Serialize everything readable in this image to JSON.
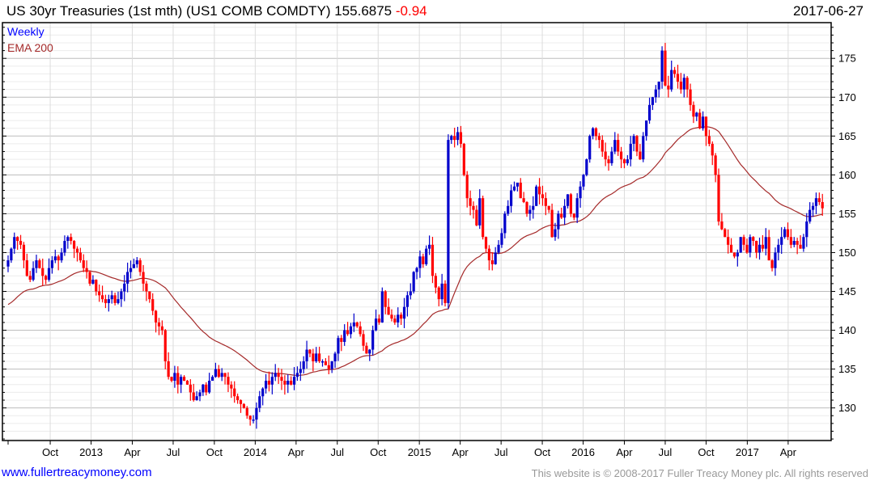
{
  "header": {
    "title": "US 30yr Treasuries (1st mth) (US1 COMB COMDTY) 155.6875",
    "change": "-0.94",
    "date": "2017-06-27"
  },
  "legend": {
    "weekly": "Weekly",
    "ema": "EMA 200"
  },
  "footer": {
    "link": "www.fullertreacymoney.com",
    "copyright": "This website is © 2008-2017 Fuller Treacy Money plc. All rights reserved"
  },
  "colors": {
    "up": "#0000cc",
    "down": "#ff0000",
    "ema": "#a52a2a",
    "grid_major": "#bdbdbd",
    "grid_minor": "#ececec"
  },
  "chart_data": {
    "type": "candlestick",
    "title": "US 30yr Treasuries (1st mth) (US1 COMB COMDTY)",
    "frequency": "Weekly",
    "ylim": [
      125.8,
      179.6
    ],
    "yticks": [
      130,
      135,
      140,
      145,
      150,
      155,
      160,
      165,
      170,
      175
    ],
    "xticks": [
      {
        "label": "Oct",
        "week": 13.4
      },
      {
        "label": "2013",
        "week": 26.4
      },
      {
        "label": "Apr",
        "week": 39.5
      },
      {
        "label": "Jul",
        "week": 52.5
      },
      {
        "label": "Oct",
        "week": 65.6
      },
      {
        "label": "2014",
        "week": 78.6
      },
      {
        "label": "Apr",
        "week": 91.6
      },
      {
        "label": "Jul",
        "week": 104.7
      },
      {
        "label": "Oct",
        "week": 117.7
      },
      {
        "label": "2015",
        "week": 130.8
      },
      {
        "label": "Apr",
        "week": 143.8
      },
      {
        "label": "Jul",
        "week": 156.8
      },
      {
        "label": "Oct",
        "week": 169.9
      },
      {
        "label": "2016",
        "week": 182.9
      },
      {
        "label": "Apr",
        "week": 196.0
      },
      {
        "label": "Jul",
        "week": 209.0
      },
      {
        "label": "Oct",
        "week": 222.0
      },
      {
        "label": "2017",
        "week": 235.1
      },
      {
        "label": "Apr",
        "week": 248.1
      }
    ],
    "first_open": 148.2,
    "ema_label": "EMA 200",
    "ema_seed": 143.3,
    "closes": [
      149,
      150.5,
      152,
      151.5,
      151,
      149,
      147,
      146.5,
      148,
      149,
      148,
      147,
      146.5,
      148,
      149,
      149.5,
      149,
      150,
      151.5,
      152,
      151.5,
      150.5,
      150,
      149,
      148,
      147.5,
      146,
      146.5,
      145,
      144.5,
      144,
      143.5,
      144,
      144.5,
      143.5,
      144,
      145,
      146,
      147.5,
      148,
      148.5,
      149,
      147.5,
      146,
      145,
      144,
      142.5,
      141,
      140.5,
      140,
      136,
      134,
      133.5,
      134.5,
      133,
      134,
      133.5,
      133,
      132,
      131,
      131.5,
      132,
      133,
      132,
      133.5,
      134,
      135,
      134,
      134.5,
      134,
      133,
      132.5,
      131.5,
      131,
      130.5,
      130,
      129,
      128.5,
      128.5,
      130,
      131.5,
      132.5,
      133.5,
      133,
      134,
      134.5,
      134,
      133.5,
      133,
      133.5,
      133,
      134,
      134.5,
      135,
      136,
      137.5,
      137,
      136,
      137,
      136,
      136,
      135.5,
      135,
      136,
      137,
      139,
      138.5,
      140,
      139.5,
      140.5,
      141,
      140.5,
      139.5,
      138,
      137,
      137.5,
      140,
      141.5,
      141,
      145,
      143,
      142,
      141.5,
      141,
      142,
      141.5,
      143,
      144.5,
      145,
      147.5,
      148,
      149.5,
      148.5,
      150.5,
      151,
      147,
      145.5,
      144,
      146,
      143.5,
      164.5,
      165,
      164.5,
      165.5,
      164,
      160,
      157,
      156,
      155.5,
      153.5,
      157,
      152,
      150.5,
      149,
      148.5,
      150,
      151,
      152.5,
      155,
      156,
      158,
      158.5,
      159,
      157,
      156.5,
      155,
      155.5,
      156,
      158.5,
      157.5,
      157,
      156,
      155.5,
      152,
      153,
      155,
      154.5,
      156,
      157.5,
      155,
      154.5,
      157,
      158.5,
      160,
      162,
      165,
      166,
      165,
      164.5,
      163,
      162,
      161.5,
      163,
      164.5,
      163,
      162,
      161.5,
      162,
      164,
      165,
      163,
      162,
      165,
      167,
      169,
      170,
      171,
      172,
      176,
      171.5,
      171,
      173.5,
      173,
      172,
      171,
      172.5,
      171,
      169,
      167.5,
      168,
      166,
      167.5,
      165,
      164,
      162.5,
      160,
      154,
      153,
      152,
      151,
      150,
      149.5,
      150,
      152,
      151,
      150,
      152,
      151.5,
      150,
      151,
      150.5,
      152,
      149,
      148,
      150,
      151,
      152,
      153,
      152,
      151,
      151.5,
      151,
      150.5,
      152,
      154,
      155.5,
      156,
      157,
      156.5,
      155.7
    ]
  }
}
